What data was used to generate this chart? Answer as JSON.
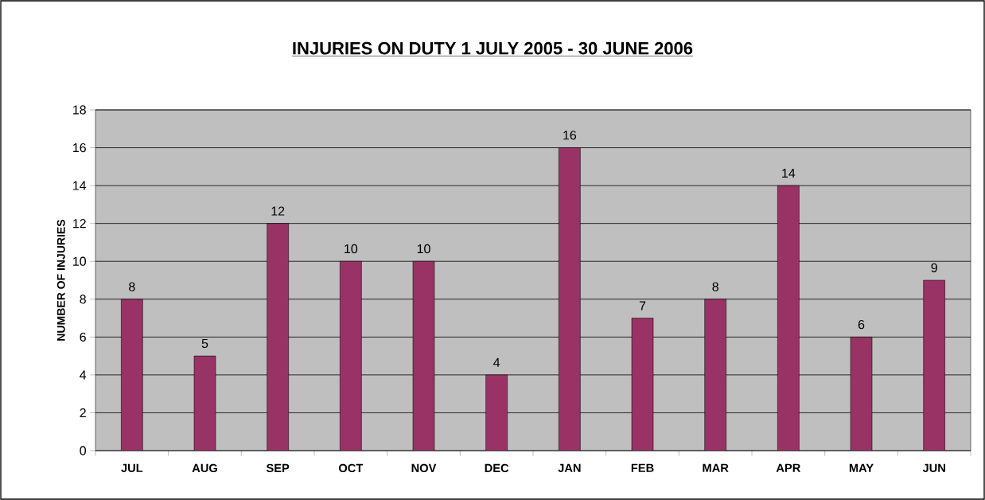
{
  "chart_data": {
    "type": "bar",
    "title": "INJURIES ON DUTY 1 JULY 2005 - 30 JUNE 2006",
    "ylabel": "NUMBER OF INJURIES",
    "categories": [
      "JUL",
      "AUG",
      "SEP",
      "OCT",
      "NOV",
      "DEC",
      "JAN",
      "FEB",
      "MAR",
      "APR",
      "MAY",
      "JUN"
    ],
    "values": [
      8,
      5,
      12,
      10,
      10,
      4,
      16,
      7,
      8,
      14,
      6,
      9
    ],
    "color": "#993366",
    "ylim": [
      0,
      18
    ],
    "yticks": [
      0,
      2,
      4,
      6,
      8,
      10,
      12,
      14,
      16,
      18
    ],
    "grid": "y",
    "data_labels": true
  }
}
